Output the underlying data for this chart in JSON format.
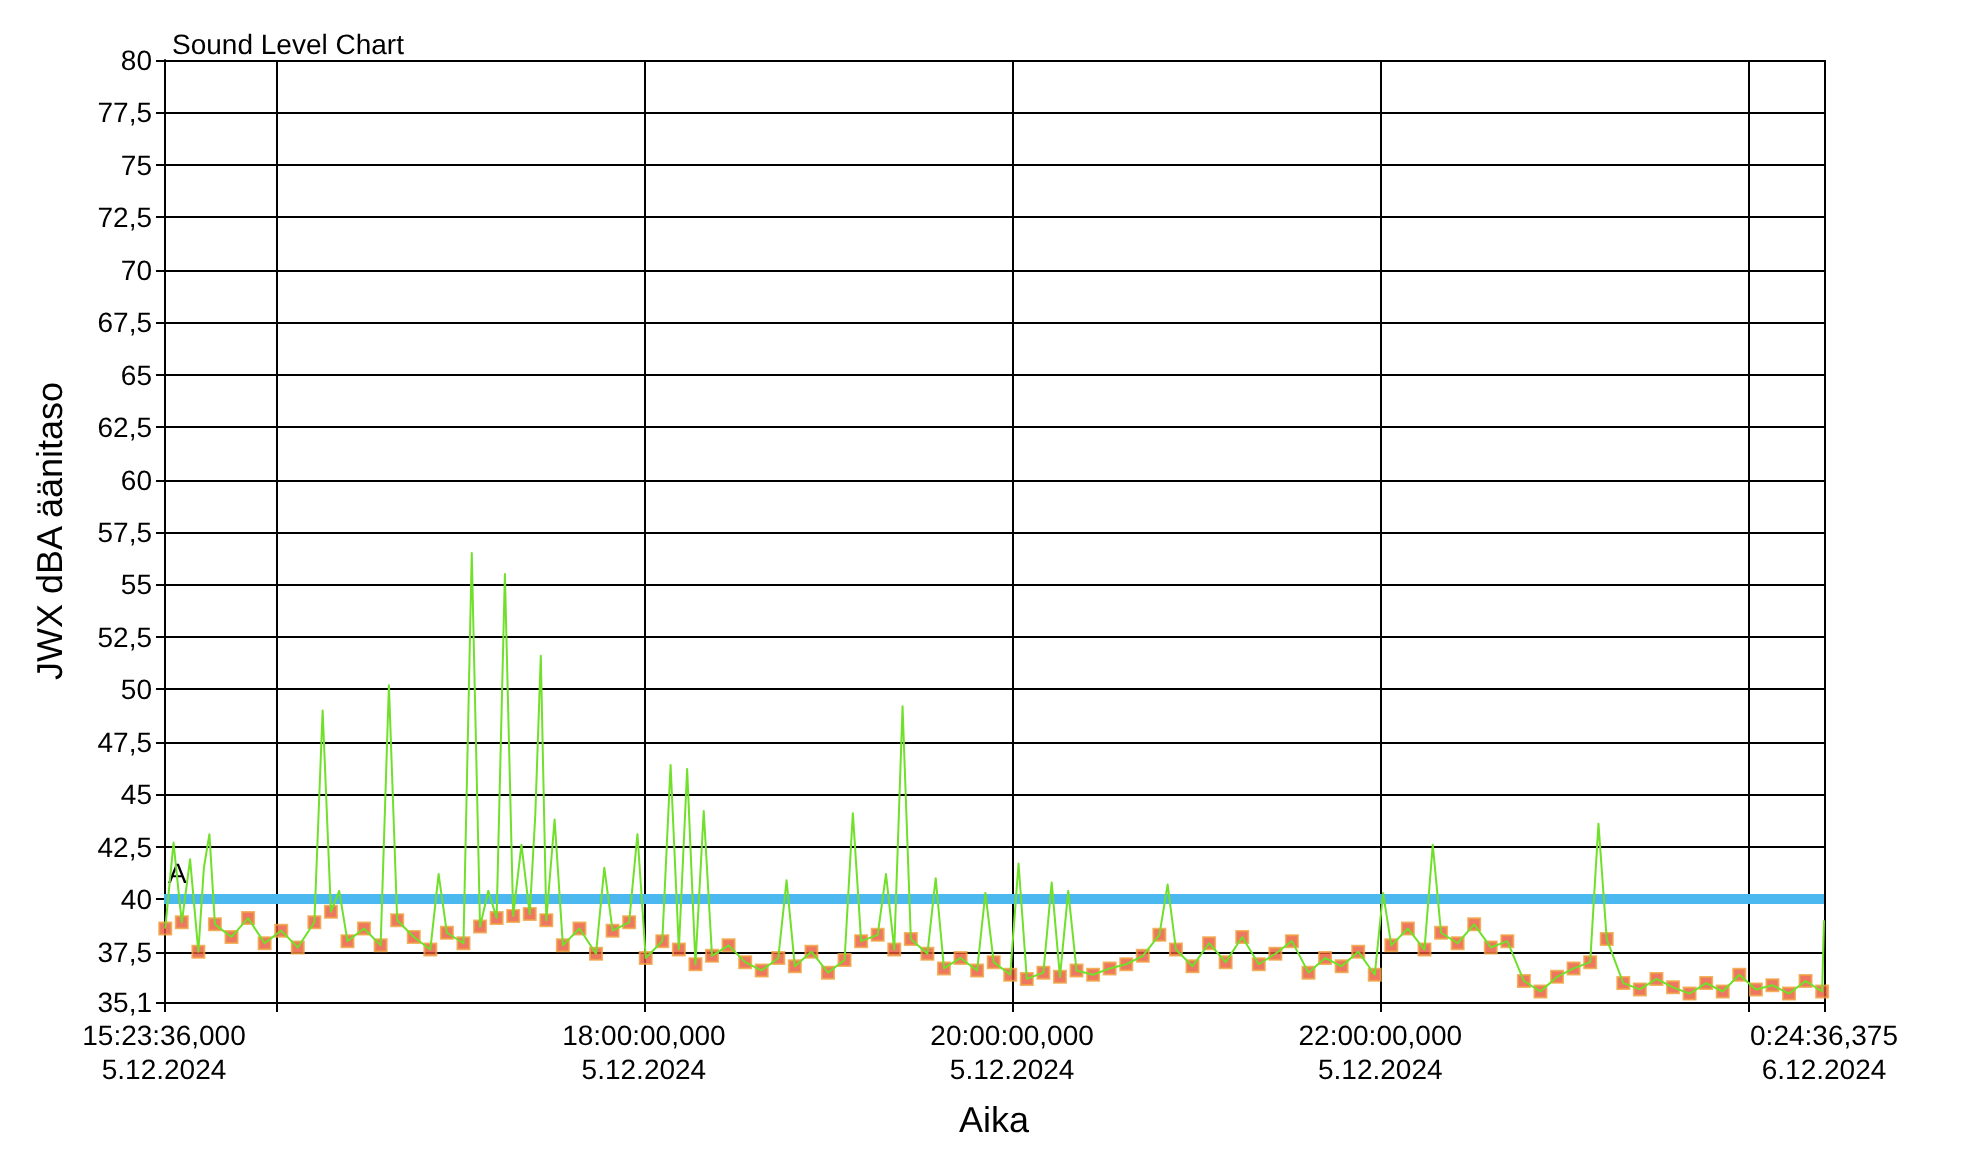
{
  "chart_data": {
    "type": "line",
    "title": "Sound Level Chart",
    "xlabel": "Aika",
    "ylabel": "JWX dBA äänitaso",
    "xlim": [
      "2024-12-05T15:23:36",
      "2024-12-06T00:24:36.375"
    ],
    "xticks": [
      {
        "value": "2024-12-05T15:23:36",
        "label": "15:23:36,000\n5.12.2024"
      },
      {
        "value": "2024-12-05T16:00",
        "label": null
      },
      {
        "value": "2024-12-05T18:00",
        "label": "18:00:00,000\n5.12.2024"
      },
      {
        "value": "2024-12-05T20:00",
        "label": "20:00:00,000\n5.12.2024"
      },
      {
        "value": "2024-12-05T22:00",
        "label": "22:00:00,000\n5.12.2024"
      },
      {
        "value": "2024-12-06T00:00",
        "label": null
      },
      {
        "value": "2024-12-06T00:24:36.375",
        "label": "0:24:36,375\n6.12.2024"
      }
    ],
    "ylim": [
      35.1,
      80
    ],
    "yticks": [
      {
        "value": 35.1,
        "label": "35,1"
      },
      {
        "value": 37.5,
        "label": "37,5"
      },
      40,
      {
        "value": 42.5,
        "label": "42,5"
      },
      45,
      {
        "value": 47.5,
        "label": "47,5"
      },
      50,
      {
        "value": 52.5,
        "label": "52,5"
      },
      55,
      {
        "value": 57.5,
        "label": "57,5"
      },
      60,
      {
        "value": 62.5,
        "label": "62,5"
      },
      65,
      {
        "value": 67.5,
        "label": "67,5"
      },
      70,
      {
        "value": 72.5,
        "label": "72,5"
      },
      75,
      {
        "value": 77.5,
        "label": "77,5"
      },
      80
    ],
    "grid": true,
    "ref_lines": [
      {
        "axis": "y",
        "value": 40,
        "label": "A",
        "color": "#4cb8f0"
      }
    ],
    "series": [
      {
        "marker": "none",
        "color": "#70e02a",
        "x": [
          "2024-12-05T15:24:00",
          "2024-12-05T15:26:42",
          "2024-12-05T15:29:24",
          "2024-12-05T15:32:06",
          "2024-12-05T15:34:48",
          "2024-12-05T15:36:36",
          "2024-12-05T15:38:24",
          "2024-12-05T15:40:12",
          "2024-12-05T15:45:36",
          "2024-12-05T15:51:00",
          "2024-12-05T15:56:24",
          "2024-12-05T16:01:48",
          "2024-12-05T16:07:12",
          "2024-12-05T16:12:36",
          "2024-12-05T16:15:18",
          "2024-12-05T16:18:00",
          "2024-12-05T16:20:42",
          "2024-12-05T16:23:24",
          "2024-12-05T16:28:48",
          "2024-12-05T16:34:12",
          "2024-12-05T16:36:54",
          "2024-12-05T16:39:36",
          "2024-12-05T16:45:00",
          "2024-12-05T16:50:24",
          "2024-12-05T16:53:06",
          "2024-12-05T16:55:48",
          "2024-12-05T17:01:12",
          "2024-12-05T17:03:54",
          "2024-12-05T17:06:36",
          "2024-12-05T17:09:18",
          "2024-12-05T17:12:00",
          "2024-12-05T17:14:42",
          "2024-12-05T17:17:24",
          "2024-12-05T17:20:06",
          "2024-12-05T17:22:48",
          "2024-12-05T17:24:36",
          "2024-12-05T17:26:24",
          "2024-12-05T17:28:12",
          "2024-12-05T17:30:54",
          "2024-12-05T17:33:36",
          "2024-12-05T17:39:00",
          "2024-12-05T17:44:24",
          "2024-12-05T17:47:06",
          "2024-12-05T17:49:48",
          "2024-12-05T17:55:12",
          "2024-12-05T17:57:54",
          "2024-12-05T18:00:36",
          "2024-12-05T18:06:00",
          "2024-12-05T18:08:42",
          "2024-12-05T18:11:24",
          "2024-12-05T18:14:06",
          "2024-12-05T18:16:48",
          "2024-12-05T18:19:30",
          "2024-12-05T18:22:12",
          "2024-12-05T18:27:36",
          "2024-12-05T18:33:00",
          "2024-12-05T18:38:24",
          "2024-12-05T18:43:48",
          "2024-12-05T18:46:30",
          "2024-12-05T18:49:12",
          "2024-12-05T18:54:36",
          "2024-12-05T19:00:00",
          "2024-12-05T19:05:24",
          "2024-12-05T19:08:06",
          "2024-12-05T19:10:48",
          "2024-12-05T19:16:12",
          "2024-12-05T19:18:54",
          "2024-12-05T19:21:36",
          "2024-12-05T19:24:18",
          "2024-12-05T19:27:00",
          "2024-12-05T19:32:24",
          "2024-12-05T19:35:06",
          "2024-12-05T19:37:48",
          "2024-12-05T19:43:12",
          "2024-12-05T19:48:36",
          "2024-12-05T19:51:18",
          "2024-12-05T19:54:00",
          "2024-12-05T19:59:24",
          "2024-12-05T20:02:06",
          "2024-12-05T20:04:48",
          "2024-12-05T20:10:12",
          "2024-12-05T20:12:54",
          "2024-12-05T20:15:36",
          "2024-12-05T20:18:18",
          "2024-12-05T20:21:00",
          "2024-12-05T20:26:24",
          "2024-12-05T20:31:48",
          "2024-12-05T20:37:12",
          "2024-12-05T20:42:36",
          "2024-12-05T20:48:00",
          "2024-12-05T20:50:42",
          "2024-12-05T20:53:24",
          "2024-12-05T20:58:48",
          "2024-12-05T21:04:12",
          "2024-12-05T21:09:36",
          "2024-12-05T21:15:00",
          "2024-12-05T21:20:24",
          "2024-12-05T21:25:48",
          "2024-12-05T21:31:12",
          "2024-12-05T21:36:36",
          "2024-12-05T21:42:00",
          "2024-12-05T21:47:24",
          "2024-12-05T21:52:48",
          "2024-12-05T21:58:12",
          "2024-12-05T22:00:54",
          "2024-12-05T22:03:36",
          "2024-12-05T22:09:00",
          "2024-12-05T22:14:24",
          "2024-12-05T22:17:06",
          "2024-12-05T22:19:48",
          "2024-12-05T22:25:12",
          "2024-12-05T22:30:36",
          "2024-12-05T22:36:00",
          "2024-12-05T22:41:24",
          "2024-12-05T22:46:48",
          "2024-12-05T22:52:12",
          "2024-12-05T22:57:36",
          "2024-12-05T23:03:00",
          "2024-12-05T23:08:24",
          "2024-12-05T23:11:06",
          "2024-12-05T23:13:48",
          "2024-12-05T23:19:12",
          "2024-12-05T23:24:36",
          "2024-12-05T23:30:00",
          "2024-12-05T23:35:24",
          "2024-12-05T23:40:48",
          "2024-12-05T23:46:12",
          "2024-12-05T23:51:36",
          "2024-12-05T23:57:00",
          "2024-12-06T00:02:24",
          "2024-12-06T00:07:48",
          "2024-12-06T00:13:12",
          "2024-12-06T00:18:36",
          "2024-12-06T00:24:00",
          "2024-12-06T00:24:36"
        ],
        "values": [
          38.6,
          42.7,
          38.9,
          41.9,
          37.5,
          41.5,
          43.1,
          38.8,
          38.2,
          39.1,
          37.9,
          38.5,
          37.7,
          38.9,
          49.0,
          39.4,
          40.4,
          38.0,
          38.6,
          37.8,
          50.2,
          39.0,
          38.2,
          37.6,
          41.2,
          38.4,
          37.9,
          56.5,
          38.7,
          40.4,
          39.1,
          55.5,
          39.2,
          42.6,
          39.3,
          44.0,
          51.6,
          39.0,
          43.8,
          37.8,
          38.6,
          37.4,
          41.5,
          38.5,
          38.9,
          43.1,
          37.2,
          38.0,
          46.4,
          37.6,
          46.2,
          36.9,
          44.2,
          37.3,
          37.8,
          37.0,
          36.6,
          37.2,
          40.9,
          36.8,
          37.5,
          36.5,
          37.1,
          44.1,
          38.0,
          38.3,
          41.2,
          37.6,
          49.2,
          38.1,
          37.4,
          41.0,
          36.7,
          37.2,
          36.6,
          40.3,
          37.0,
          36.4,
          41.7,
          36.2,
          36.5,
          40.8,
          36.3,
          40.4,
          36.6,
          36.4,
          36.7,
          36.9,
          37.3,
          38.3,
          40.7,
          37.6,
          36.8,
          37.9,
          37.0,
          38.2,
          36.9,
          37.4,
          38.0,
          36.5,
          37.2,
          36.8,
          37.5,
          36.4,
          40.3,
          37.8,
          38.6,
          37.6,
          42.6,
          38.4,
          37.9,
          38.8,
          37.7,
          38.0,
          36.1,
          35.6,
          36.3,
          36.7,
          37.0,
          43.6,
          38.1,
          36.0,
          35.7,
          36.2,
          35.8,
          35.5,
          36.0,
          35.6,
          36.4,
          35.7,
          35.9,
          35.5,
          36.1,
          35.6,
          39.0
        ]
      },
      {
        "type": "scatter",
        "marker": "square",
        "color": "#e8553a",
        "x": [
          "2024-12-05T15:24:00",
          "2024-12-05T15:29:24",
          "2024-12-05T15:34:48",
          "2024-12-05T15:40:12",
          "2024-12-05T15:45:36",
          "2024-12-05T15:51:00",
          "2024-12-05T15:56:24",
          "2024-12-05T16:01:48",
          "2024-12-05T16:07:12",
          "2024-12-05T16:12:36",
          "2024-12-05T16:18:00",
          "2024-12-05T16:23:24",
          "2024-12-05T16:28:48",
          "2024-12-05T16:34:12",
          "2024-12-05T16:39:36",
          "2024-12-05T16:45:00",
          "2024-12-05T16:50:24",
          "2024-12-05T16:55:48",
          "2024-12-05T17:01:12",
          "2024-12-05T17:06:36",
          "2024-12-05T17:12:00",
          "2024-12-05T17:17:24",
          "2024-12-05T17:22:48",
          "2024-12-05T17:28:12",
          "2024-12-05T17:33:36",
          "2024-12-05T17:39:00",
          "2024-12-05T17:44:24",
          "2024-12-05T17:49:48",
          "2024-12-05T17:55:12",
          "2024-12-05T18:00:36",
          "2024-12-05T18:06:00",
          "2024-12-05T18:11:24",
          "2024-12-05T18:16:48",
          "2024-12-05T18:22:12",
          "2024-12-05T18:27:36",
          "2024-12-05T18:33:00",
          "2024-12-05T18:38:24",
          "2024-12-05T18:43:48",
          "2024-12-05T18:49:12",
          "2024-12-05T18:54:36",
          "2024-12-05T19:00:00",
          "2024-12-05T19:05:24",
          "2024-12-05T19:10:48",
          "2024-12-05T19:16:12",
          "2024-12-05T19:21:36",
          "2024-12-05T19:27:00",
          "2024-12-05T19:32:24",
          "2024-12-05T19:37:48",
          "2024-12-05T19:43:12",
          "2024-12-05T19:48:36",
          "2024-12-05T19:54:00",
          "2024-12-05T19:59:24",
          "2024-12-05T20:04:48",
          "2024-12-05T20:10:12",
          "2024-12-05T20:15:36",
          "2024-12-05T20:21:00",
          "2024-12-05T20:26:24",
          "2024-12-05T20:31:48",
          "2024-12-05T20:37:12",
          "2024-12-05T20:42:36",
          "2024-12-05T20:48:00",
          "2024-12-05T20:53:24",
          "2024-12-05T20:58:48",
          "2024-12-05T21:04:12",
          "2024-12-05T21:09:36",
          "2024-12-05T21:15:00",
          "2024-12-05T21:20:24",
          "2024-12-05T21:25:48",
          "2024-12-05T21:31:12",
          "2024-12-05T21:36:36",
          "2024-12-05T21:42:00",
          "2024-12-05T21:47:24",
          "2024-12-05T21:52:48",
          "2024-12-05T21:58:12",
          "2024-12-05T22:03:36",
          "2024-12-05T22:09:00",
          "2024-12-05T22:14:24",
          "2024-12-05T22:19:48",
          "2024-12-05T22:25:12",
          "2024-12-05T22:30:36",
          "2024-12-05T22:36:00",
          "2024-12-05T22:41:24",
          "2024-12-05T22:46:48",
          "2024-12-05T22:52:12",
          "2024-12-05T22:57:36",
          "2024-12-05T23:03:00",
          "2024-12-05T23:08:24",
          "2024-12-05T23:13:48",
          "2024-12-05T23:19:12",
          "2024-12-05T23:24:36",
          "2024-12-05T23:30:00",
          "2024-12-05T23:35:24",
          "2024-12-05T23:40:48",
          "2024-12-05T23:46:12",
          "2024-12-05T23:51:36",
          "2024-12-05T23:57:00",
          "2024-12-06T00:02:24",
          "2024-12-06T00:07:48",
          "2024-12-06T00:13:12",
          "2024-12-06T00:18:36",
          "2024-12-06T00:24:00"
        ],
        "values": [
          38.6,
          38.9,
          37.5,
          38.8,
          38.2,
          39.1,
          37.9,
          38.5,
          37.7,
          38.9,
          39.4,
          38.0,
          38.6,
          37.8,
          39.0,
          38.2,
          37.6,
          38.4,
          37.9,
          38.7,
          39.1,
          39.2,
          39.3,
          39.0,
          37.8,
          38.6,
          37.4,
          38.5,
          38.9,
          37.2,
          38.0,
          37.6,
          36.9,
          37.3,
          37.8,
          37.0,
          36.6,
          37.2,
          36.8,
          37.5,
          36.5,
          37.1,
          38.0,
          38.3,
          37.6,
          38.1,
          37.4,
          36.7,
          37.2,
          36.6,
          37.0,
          36.4,
          36.2,
          36.5,
          36.3,
          36.6,
          36.4,
          36.7,
          36.9,
          37.3,
          38.3,
          37.6,
          36.8,
          37.9,
          37.0,
          38.2,
          36.9,
          37.4,
          38.0,
          36.5,
          37.2,
          36.8,
          37.5,
          36.4,
          37.8,
          38.6,
          37.6,
          38.4,
          37.9,
          38.8,
          37.7,
          38.0,
          36.1,
          35.6,
          36.3,
          36.7,
          37.0,
          38.1,
          36.0,
          35.7,
          36.2,
          35.8,
          35.5,
          36.0,
          35.6,
          36.4,
          35.7,
          35.9,
          35.5,
          36.1,
          35.6
        ]
      }
    ]
  }
}
